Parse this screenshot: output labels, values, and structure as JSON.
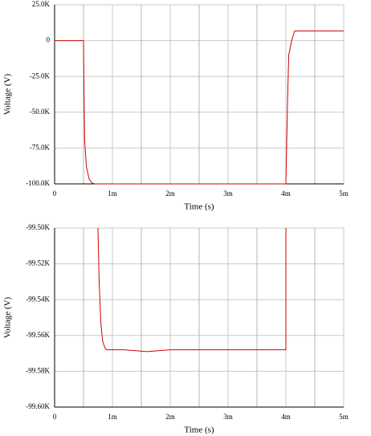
{
  "chart_data": [
    {
      "type": "line",
      "x_label": "Time (s)",
      "y_label": "Voltage (V)",
      "x": [
        0,
        0.0005,
        0.00051,
        0.00052,
        0.00055,
        0.0006,
        0.00065,
        0.0007,
        0.004,
        0.00401,
        0.00403,
        0.00405,
        0.0041,
        0.00415,
        0.005
      ],
      "series": [
        {
          "color": "#d40000",
          "values": [
            0,
            0,
            -40000,
            -70000,
            -88000,
            -97000,
            -99500,
            -100000,
            -100000,
            -80000,
            -40000,
            -10000,
            0,
            6700,
            6700
          ]
        }
      ],
      "xlim": [
        0,
        0.005
      ],
      "xticks": [
        0,
        {
          "value": 0.001,
          "label": "1m"
        },
        {
          "value": 0.002,
          "label": "2m"
        },
        {
          "value": 0.003,
          "label": "3m"
        },
        {
          "value": 0.004,
          "label": "4m"
        },
        {
          "value": 0.005,
          "label": "5m"
        }
      ],
      "ylim": [
        -100000,
        25000
      ],
      "yticks": [
        {
          "value": -100000,
          "label": "-100.0K"
        },
        {
          "value": -75000,
          "label": "-75.0K"
        },
        {
          "value": -50000,
          "label": "-50.0K"
        },
        {
          "value": -25000,
          "label": "-25.0K"
        },
        0,
        {
          "value": 25000,
          "label": "25.0K"
        }
      ],
      "grid": true
    },
    {
      "type": "line",
      "x_label": "Time (s)",
      "y_label": "Voltage (V)",
      "x": [
        0.00075,
        0.00077,
        0.0008,
        0.00083,
        0.00087,
        0.0009,
        0.0012,
        0.0016,
        0.002,
        0.0025,
        0.003,
        0.0035,
        0.004,
        0.004
      ],
      "series": [
        {
          "color": "#d40000",
          "values": [
            -99500,
            -99530,
            -99553,
            -99563,
            -99567,
            -99568,
            -99568,
            -99569,
            -99568,
            -99568,
            -99568,
            -99568,
            -99568,
            -99500
          ]
        }
      ],
      "xlim": [
        0,
        0.005
      ],
      "xticks": [
        0,
        {
          "value": 0.001,
          "label": "1m"
        },
        {
          "value": 0.002,
          "label": "2m"
        },
        {
          "value": 0.003,
          "label": "3m"
        },
        {
          "value": 0.004,
          "label": "4m"
        },
        {
          "value": 0.005,
          "label": "5m"
        }
      ],
      "ylim": [
        -99600,
        -99500
      ],
      "yticks": [
        {
          "value": -99600,
          "label": "-99.60K"
        },
        {
          "value": -99580,
          "label": "-99.58K"
        },
        {
          "value": -99560,
          "label": "-99.56K"
        },
        {
          "value": -99540,
          "label": "-99.54K"
        },
        {
          "value": -99520,
          "label": "-99.52K"
        },
        {
          "value": -99500,
          "label": "-99.50K"
        }
      ],
      "grid": true
    }
  ]
}
